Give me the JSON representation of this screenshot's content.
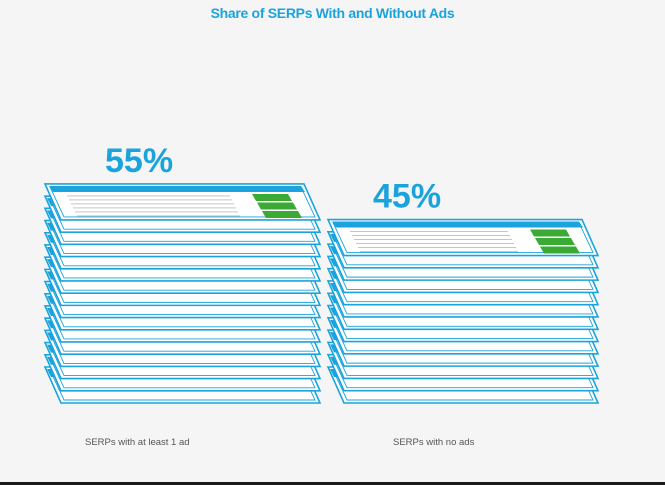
{
  "chart_data": {
    "type": "bar",
    "title": "Share of SERPs With and Without Ads",
    "categories": [
      "SERPs with at least 1 ad",
      "SERPs with no ads"
    ],
    "values": [
      55,
      45
    ],
    "value_labels": [
      "55%",
      "45%"
    ],
    "unit": "%",
    "xlabel": "",
    "ylabel": "",
    "ylim": [
      0,
      55
    ],
    "grid": false,
    "legend": "none"
  },
  "colors": {
    "title": "#1aa3dc",
    "page_outline": "#1aa3dc",
    "page_fill": "#ffffff",
    "header_bar": "#1aa3dc",
    "ad_block": "#3aaa35",
    "result_line": "#e8a43c",
    "text_line": "#9aa4ab",
    "category_text": "#555555"
  }
}
